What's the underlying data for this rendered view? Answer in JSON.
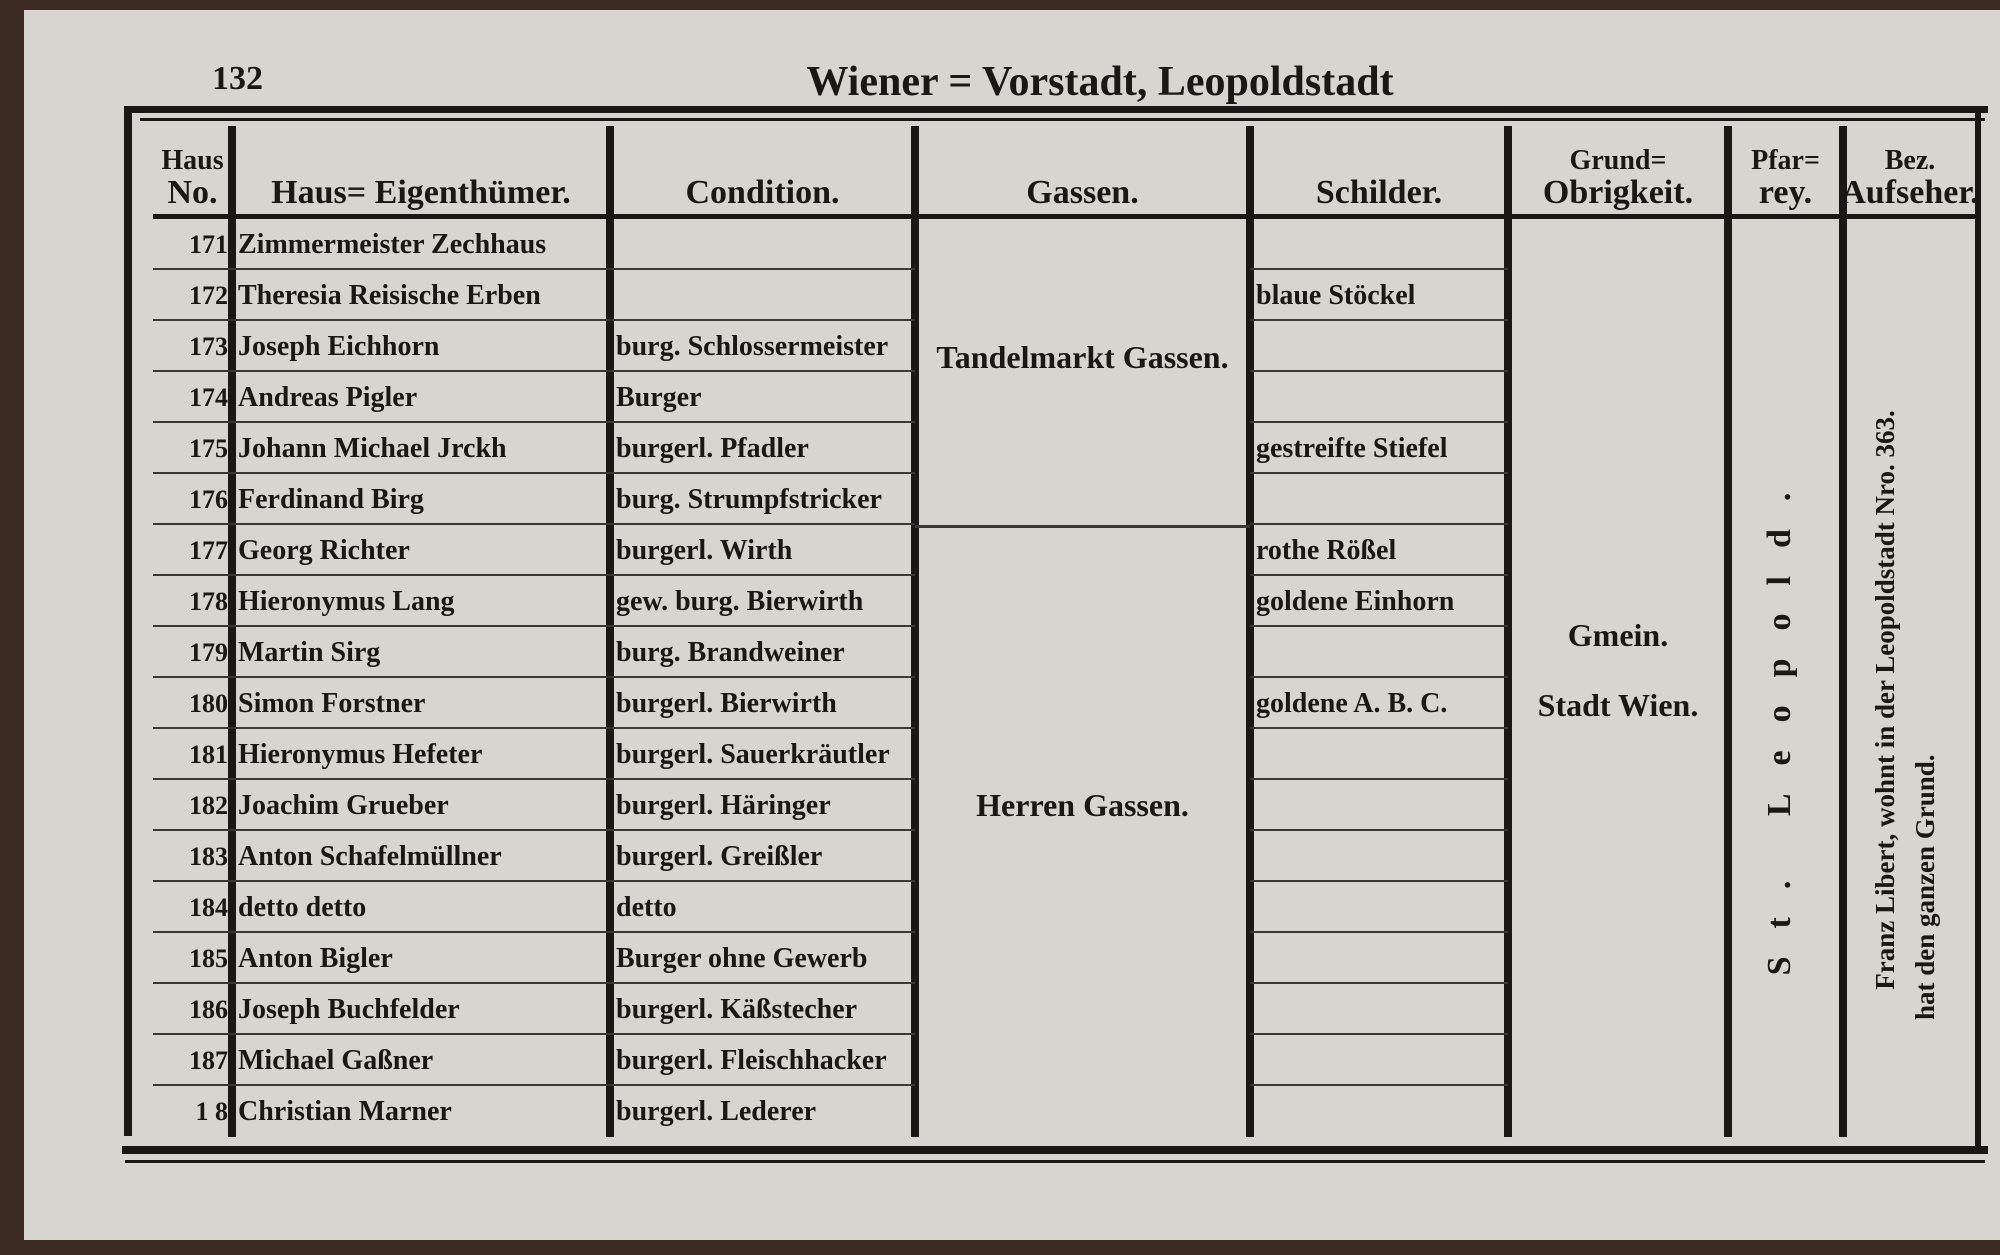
{
  "page": {
    "number": "132",
    "title": "Wiener = Vorstadt, Leopoldstadt"
  },
  "table": {
    "headers": [
      [
        "Haus",
        "No."
      ],
      [
        "Haus= Eigenthümer."
      ],
      [
        "Condition."
      ],
      [
        "Gassen."
      ],
      [
        "Schilder."
      ],
      [
        "Grund=",
        "Obrigkeit."
      ],
      [
        "Pfar=",
        "rey."
      ],
      [
        "Bez.",
        "Aufseher."
      ]
    ],
    "rows": [
      {
        "no": "171",
        "owner": "Zimmermeister Zechhaus"
      },
      {
        "no": "172",
        "owner": "Theresia Reisische Erben",
        "sign": "blaue Stöckel"
      },
      {
        "no": "173",
        "owner": "Joseph Eichhorn",
        "condition": "burg. Schlossermeister"
      },
      {
        "no": "174",
        "owner": "Andreas Pigler",
        "condition": "Burger"
      },
      {
        "no": "175",
        "owner": "Johann Michael Jrckh",
        "condition": "burgerl. Pfadler",
        "sign": "gestreifte Stiefel"
      },
      {
        "no": "176",
        "owner": "Ferdinand Birg",
        "condition": "burg. Strumpfstricker"
      },
      {
        "no": "177",
        "owner": "Georg Richter",
        "condition": "burgerl. Wirth",
        "sign": "rothe Rößel"
      },
      {
        "no": "178",
        "owner": "Hieronymus Lang",
        "condition": "gew. burg. Bierwirth",
        "sign": "goldene Einhorn"
      },
      {
        "no": "179",
        "owner": "Martin Sirg",
        "condition": "burg. Brandweiner"
      },
      {
        "no": "180",
        "owner": "Simon Forstner",
        "condition": "burgerl. Bierwirth",
        "sign": "goldene A. B. C."
      },
      {
        "no": "181",
        "owner": "Hieronymus Hefeter",
        "condition": "burgerl. Sauerkräutler"
      },
      {
        "no": "182",
        "owner": "Joachim Grueber",
        "condition": "burgerl. Häringer"
      },
      {
        "no": "183",
        "owner": "Anton Schafelmüllner",
        "condition": "burgerl. Greißler"
      },
      {
        "no": "184",
        "owner": "detto       detto",
        "condition": "detto"
      },
      {
        "no": "185",
        "owner": "Anton Bigler",
        "condition": "Burger ohne Gewerb"
      },
      {
        "no": "186",
        "owner": "Joseph Buchfelder",
        "condition": "burgerl. Käßstecher"
      },
      {
        "no": "187",
        "owner": "Michael Gaßner",
        "condition": "burgerl. Fleischhacker"
      },
      {
        "no": "1 8",
        "owner": "Christian Marner",
        "condition": "burgerl. Lederer"
      }
    ],
    "gassen": [
      "Tandelmarkt Gassen.",
      "Herren Gassen."
    ],
    "grund": [
      "Gmein.",
      "Stadt Wien."
    ],
    "pfarrey": "St. Leopold.",
    "aufseher": [
      "Franz Libert, wohnt in der Leopoldstadt Nro. 363.",
      "hat den ganzen Grund."
    ]
  }
}
